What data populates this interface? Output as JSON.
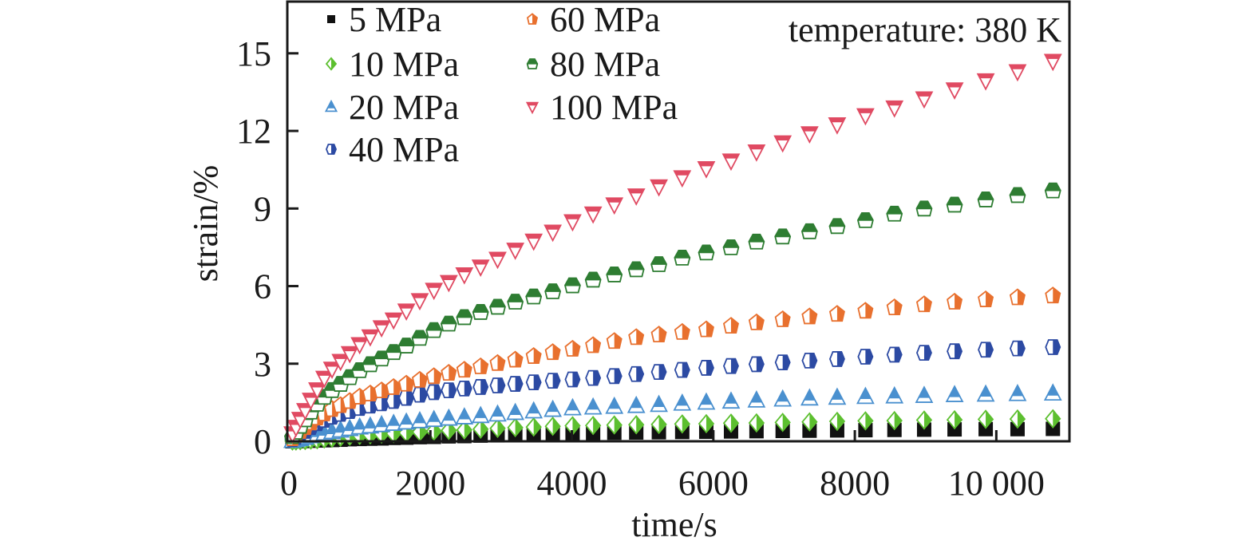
{
  "chart_data": {
    "type": "scatter",
    "xlabel": "time/s",
    "ylabel": "strain/%",
    "annotation": "temperature: 380 K",
    "xlim": [
      0,
      11000
    ],
    "ylim": [
      0,
      17
    ],
    "xticks": [
      0,
      2000,
      4000,
      6000,
      8000,
      10000
    ],
    "xtick_labels": [
      "0",
      "2000",
      "4000",
      "6000",
      "8000",
      "10 000"
    ],
    "yticks": [
      0,
      3,
      6,
      9,
      12,
      15
    ],
    "ytick_labels": [
      "0",
      "3",
      "6",
      "9",
      "12",
      "15"
    ],
    "grid": false,
    "legend_position": "top-left",
    "x": [
      50,
      100,
      160,
      230,
      310,
      400,
      500,
      610,
      730,
      860,
      1000,
      1150,
      1310,
      1480,
      1660,
      1850,
      2050,
      2260,
      2480,
      2710,
      2950,
      3200,
      3460,
      3730,
      4010,
      4300,
      4600,
      4910,
      5230,
      5560,
      5900,
      6250,
      6610,
      6980,
      7360,
      7750,
      8150,
      8560,
      8980,
      9410,
      9850,
      10300,
      10800
    ],
    "series": [
      {
        "name": "5 MPa",
        "color": "#111111",
        "marker": "square",
        "values": [
          0,
          0,
          0.01,
          0.01,
          0.02,
          0.03,
          0.04,
          0.05,
          0.06,
          0.08,
          0.09,
          0.1,
          0.11,
          0.13,
          0.14,
          0.16,
          0.17,
          0.19,
          0.2,
          0.22,
          0.23,
          0.25,
          0.27,
          0.29,
          0.31,
          0.32,
          0.33,
          0.34,
          0.35,
          0.36,
          0.37,
          0.38,
          0.39,
          0.4,
          0.41,
          0.42,
          0.43,
          0.44,
          0.45,
          0.46,
          0.47,
          0.47,
          0.48
        ]
      },
      {
        "name": "10 MPa",
        "color": "#5cbf2f",
        "marker": "diamond",
        "values": [
          0.01,
          0.01,
          0.02,
          0.03,
          0.05,
          0.06,
          0.09,
          0.12,
          0.16,
          0.2,
          0.23,
          0.25,
          0.28,
          0.3,
          0.33,
          0.36,
          0.39,
          0.42,
          0.44,
          0.47,
          0.5,
          0.53,
          0.55,
          0.58,
          0.6,
          0.61,
          0.63,
          0.64,
          0.65,
          0.67,
          0.68,
          0.7,
          0.71,
          0.73,
          0.75,
          0.77,
          0.79,
          0.8,
          0.82,
          0.83,
          0.85,
          0.86,
          0.87
        ]
      },
      {
        "name": "20 MPa",
        "color": "#4a90cf",
        "marker": "triangle-up",
        "values": [
          0.02,
          0.05,
          0.09,
          0.14,
          0.2,
          0.25,
          0.3,
          0.36,
          0.42,
          0.48,
          0.54,
          0.58,
          0.63,
          0.68,
          0.73,
          0.78,
          0.83,
          0.88,
          0.93,
          0.98,
          1.04,
          1.1,
          1.16,
          1.22,
          1.28,
          1.31,
          1.34,
          1.37,
          1.41,
          1.46,
          1.5,
          1.54,
          1.58,
          1.62,
          1.66,
          1.69,
          1.72,
          1.74,
          1.76,
          1.79,
          1.81,
          1.83,
          1.85
        ]
      },
      {
        "name": "40 MPa",
        "color": "#2c4aa3",
        "marker": "hexagon",
        "values": [
          0.08,
          0.17,
          0.28,
          0.4,
          0.55,
          0.7,
          0.83,
          0.95,
          1.06,
          1.17,
          1.29,
          1.38,
          1.47,
          1.56,
          1.68,
          1.8,
          1.9,
          1.97,
          2.04,
          2.1,
          2.16,
          2.22,
          2.28,
          2.34,
          2.39,
          2.45,
          2.52,
          2.6,
          2.68,
          2.76,
          2.84,
          2.91,
          2.98,
          3.05,
          3.12,
          3.18,
          3.27,
          3.35,
          3.42,
          3.48,
          3.54,
          3.59,
          3.64
        ]
      },
      {
        "name": "60 MPa",
        "color": "#e8702e",
        "marker": "pentagon",
        "values": [
          0.12,
          0.25,
          0.4,
          0.55,
          0.73,
          0.92,
          1.08,
          1.25,
          1.4,
          1.56,
          1.73,
          1.85,
          1.97,
          2.1,
          2.23,
          2.38,
          2.52,
          2.65,
          2.77,
          2.9,
          3.03,
          3.16,
          3.3,
          3.45,
          3.58,
          3.72,
          3.88,
          4.03,
          4.13,
          4.23,
          4.33,
          4.47,
          4.6,
          4.72,
          4.83,
          4.93,
          5.05,
          5.18,
          5.3,
          5.4,
          5.49,
          5.57,
          5.64
        ]
      },
      {
        "name": "80 MPa",
        "color": "#2e7d32",
        "marker": "hexagon-top",
        "values": [
          0.2,
          0.37,
          0.6,
          0.85,
          1.15,
          1.45,
          1.72,
          1.98,
          2.22,
          2.48,
          2.75,
          2.98,
          3.2,
          3.45,
          3.7,
          4.0,
          4.3,
          4.55,
          4.8,
          5.0,
          5.2,
          5.4,
          5.6,
          5.8,
          6.03,
          6.25,
          6.45,
          6.65,
          6.85,
          7.1,
          7.3,
          7.5,
          7.72,
          7.92,
          8.12,
          8.32,
          8.55,
          8.8,
          9.0,
          9.15,
          9.35,
          9.52,
          9.7
        ]
      },
      {
        "name": "100 MPa",
        "color": "#e04a62",
        "marker": "triangle-down",
        "values": [
          0.3,
          0.55,
          0.86,
          1.2,
          1.6,
          2.0,
          2.45,
          2.8,
          3.1,
          3.4,
          3.75,
          4.05,
          4.4,
          4.7,
          5.05,
          5.45,
          5.85,
          6.15,
          6.45,
          6.75,
          7.05,
          7.4,
          7.75,
          8.1,
          8.5,
          8.8,
          9.15,
          9.5,
          9.85,
          10.2,
          10.55,
          10.85,
          11.2,
          11.55,
          11.9,
          12.25,
          12.6,
          12.9,
          13.25,
          13.6,
          13.95,
          14.3,
          14.7
        ]
      }
    ]
  }
}
